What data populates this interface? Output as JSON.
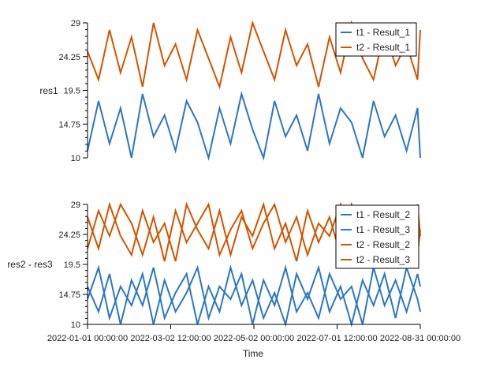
{
  "chart_data": [
    {
      "type": "line",
      "ylabel": "res1",
      "xlabel": "",
      "ylim": [
        10,
        29
      ],
      "yticks": [
        "10",
        "14.75",
        "19.5",
        "24.25",
        "29"
      ],
      "legend_placement": "top-right",
      "x": [
        "2022-01-01",
        "2022-01-09",
        "2022-01-17",
        "2022-01-25",
        "2022-02-02",
        "2022-02-10",
        "2022-02-18",
        "2022-02-26",
        "2022-03-06",
        "2022-03-14",
        "2022-03-22",
        "2022-03-30",
        "2022-04-07",
        "2022-04-15",
        "2022-04-23",
        "2022-05-01",
        "2022-05-09",
        "2022-05-17",
        "2022-05-25",
        "2022-06-02",
        "2022-06-10",
        "2022-06-18",
        "2022-06-26",
        "2022-07-04",
        "2022-07-12",
        "2022-07-20",
        "2022-07-28",
        "2022-08-05",
        "2022-08-13",
        "2022-08-21",
        "2022-08-29",
        "2022-08-31"
      ],
      "series": [
        {
          "name": "t1 - Result_1",
          "color": "#2b76c5",
          "values": [
            11,
            18,
            12,
            17,
            10,
            19,
            13,
            16,
            11,
            18,
            15,
            10,
            17,
            12,
            19,
            14,
            10,
            18,
            13,
            16,
            11,
            19,
            12,
            17,
            15,
            10,
            18,
            13,
            16,
            11,
            17,
            10
          ]
        },
        {
          "name": "t2 - Result_1",
          "color": "#d35400",
          "values": [
            25,
            21,
            28,
            22,
            27,
            20,
            29,
            23,
            26,
            21,
            28,
            24,
            20,
            27,
            22,
            29,
            25,
            21,
            28,
            23,
            26,
            20,
            27,
            22,
            29,
            24,
            21,
            28,
            23,
            26,
            21,
            28
          ]
        }
      ]
    },
    {
      "type": "line",
      "ylabel": "res2 - res3",
      "xlabel": "Time",
      "ylim": [
        10,
        29
      ],
      "yticks": [
        "10",
        "14.75",
        "19.5",
        "24.25",
        "29"
      ],
      "xticks": [
        "2022-01-01 00:00:00",
        "2022-03-02 12:00:00",
        "2022-05-02 00:00:00",
        "2022-07-01 12:00:00",
        "2022-08-31 00:00:00"
      ],
      "legend_placement": "top-right",
      "x": [
        "2022-01-01",
        "2022-01-09",
        "2022-01-17",
        "2022-01-25",
        "2022-02-02",
        "2022-02-10",
        "2022-02-18",
        "2022-02-26",
        "2022-03-06",
        "2022-03-14",
        "2022-03-22",
        "2022-03-30",
        "2022-04-07",
        "2022-04-15",
        "2022-04-23",
        "2022-05-01",
        "2022-05-09",
        "2022-05-17",
        "2022-05-25",
        "2022-06-02",
        "2022-06-10",
        "2022-06-18",
        "2022-06-26",
        "2022-07-04",
        "2022-07-12",
        "2022-07-20",
        "2022-07-28",
        "2022-08-05",
        "2022-08-13",
        "2022-08-21",
        "2022-08-29",
        "2022-08-31"
      ],
      "series": [
        {
          "name": "t1 - Result_2",
          "color": "#2b76c5",
          "values": [
            14,
            19,
            11,
            16,
            13,
            18,
            10,
            17,
            12,
            15,
            19,
            11,
            16,
            14,
            18,
            10,
            17,
            13,
            19,
            12,
            15,
            11,
            18,
            14,
            16,
            10,
            19,
            13,
            17,
            12,
            18,
            16
          ]
        },
        {
          "name": "t1 - Result_3",
          "color": "#2b76c5",
          "values": [
            16,
            12,
            18,
            10,
            17,
            13,
            19,
            11,
            15,
            18,
            10,
            16,
            12,
            19,
            13,
            17,
            11,
            15,
            10,
            18,
            14,
            19,
            12,
            16,
            10,
            17,
            13,
            18,
            11,
            19,
            14,
            12
          ]
        },
        {
          "name": "t2 - Result_2",
          "color": "#d35400",
          "values": [
            27,
            22,
            29,
            24,
            21,
            28,
            23,
            26,
            20,
            29,
            25,
            22,
            28,
            21,
            27,
            24,
            29,
            22,
            26,
            20,
            28,
            23,
            27,
            21,
            29,
            25,
            22,
            28,
            24,
            27,
            21,
            25
          ]
        },
        {
          "name": "t2 - Result_3",
          "color": "#d35400",
          "values": [
            22,
            28,
            24,
            29,
            26,
            21,
            27,
            20,
            28,
            23,
            26,
            29,
            21,
            25,
            28,
            22,
            26,
            29,
            23,
            27,
            21,
            26,
            24,
            29,
            22,
            28,
            25,
            21,
            27,
            23,
            29,
            24
          ]
        }
      ]
    }
  ]
}
